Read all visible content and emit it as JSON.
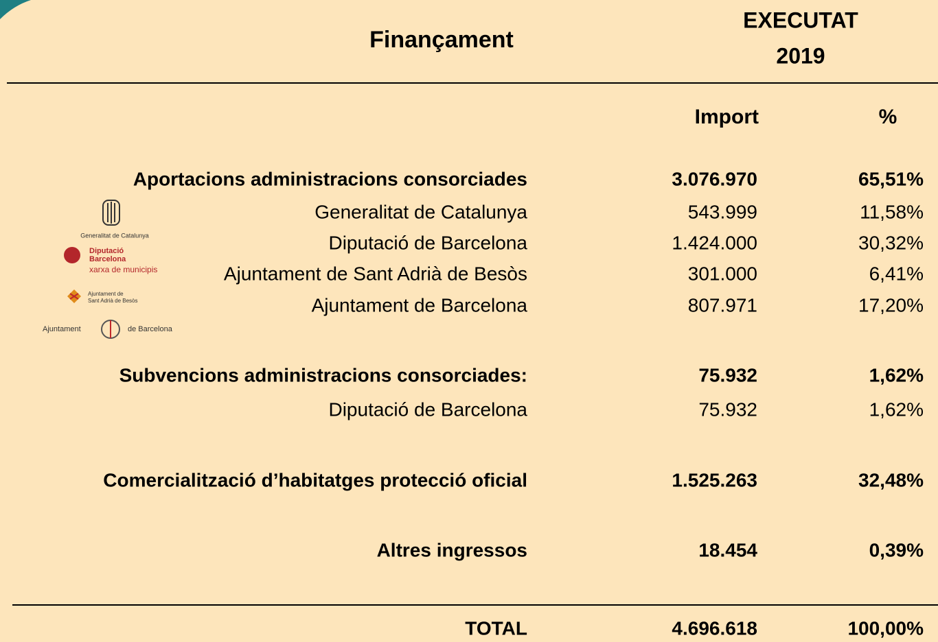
{
  "header": {
    "title": "Finançament",
    "executat": "EXECUTAT",
    "year": "2019"
  },
  "columns": [
    "Import",
    "%"
  ],
  "rows": [
    {
      "label": "Aportacions administracions consorciades",
      "import": "3.076.970",
      "pct": "65,51%",
      "bold": true
    },
    {
      "label": "Generalitat de Catalunya",
      "import": "543.999",
      "pct": "11,58%",
      "bold": false
    },
    {
      "label": "Diputació de Barcelona",
      "import": "1.424.000",
      "pct": "30,32%",
      "bold": false
    },
    {
      "label": "Ajuntament de Sant Adrià de Besòs",
      "import": "301.000",
      "pct": "6,41%",
      "bold": false
    },
    {
      "label": "Ajuntament de Barcelona",
      "import": "807.971",
      "pct": "17,20%",
      "bold": false
    },
    {
      "label": "Subvencions administracions consorciades:",
      "import": "75.932",
      "pct": "1,62%",
      "bold": true
    },
    {
      "label": "Diputació de Barcelona",
      "import": "75.932",
      "pct": "1,62%",
      "bold": false
    },
    {
      "label": "Comercialització d’habitatges protecció oficial",
      "import": "1.525.263",
      "pct": "32,48%",
      "bold": true
    },
    {
      "label": "Altres ingressos",
      "import": "18.454",
      "pct": "0,39%",
      "bold": true
    }
  ],
  "total": {
    "label": "TOTAL",
    "import": "4.696.618",
    "pct": "100,00%"
  },
  "logos": {
    "generalitat": "Generalitat de Catalunya",
    "diputacio": [
      "Diputació",
      "Barcelona",
      "xarxa de municipis"
    ],
    "sant_adria": [
      "Ajuntament de",
      "Sant Adrià de Besòs"
    ],
    "barcelona": [
      "Ajuntament",
      "de Barcelona"
    ]
  }
}
